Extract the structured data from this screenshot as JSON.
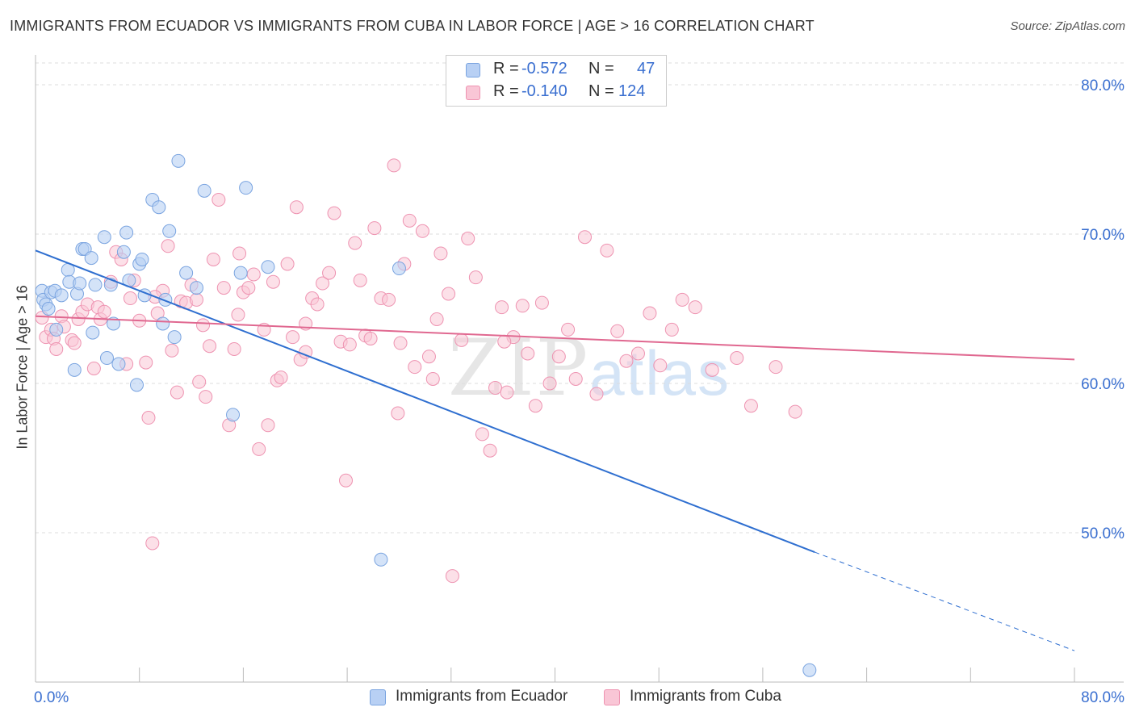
{
  "header": {
    "title": "IMMIGRANTS FROM ECUADOR VS IMMIGRANTS FROM CUBA IN LABOR FORCE | AGE > 16 CORRELATION CHART",
    "source": "Source: ZipAtlas.com"
  },
  "legend": {
    "series1": {
      "r_label": "R =",
      "r_value": "-0.572",
      "n_label": "N =",
      "n_value": "47"
    },
    "series2": {
      "r_label": "R =",
      "r_value": "-0.140",
      "n_label": "N =",
      "n_value": "124"
    }
  },
  "watermark": {
    "zip": "ZIP",
    "atlas": "atlas"
  },
  "colors": {
    "ecuador_fill": "#b8d0f4",
    "ecuador_stroke": "#7aa4e0",
    "ecuador_line": "#2f6fd0",
    "cuba_fill": "#f9c6d6",
    "cuba_stroke": "#ee93b1",
    "cuba_line": "#e06890",
    "axis_text": "#3a6fd0"
  },
  "chart_data": {
    "type": "scatter",
    "title": "IMMIGRANTS FROM ECUADOR VS IMMIGRANTS FROM CUBA IN LABOR FORCE | AGE > 16 CORRELATION CHART",
    "xlabel": "",
    "ylabel": "In Labor Force | Age > 16",
    "xlim": [
      0,
      80
    ],
    "ylim": [
      40,
      82
    ],
    "x_tick_labels": [
      "0.0%",
      "80.0%"
    ],
    "y_ticks": [
      50,
      60,
      70,
      80
    ],
    "y_tick_labels": [
      "50.0%",
      "60.0%",
      "70.0%",
      "80.0%"
    ],
    "grid": true,
    "series": [
      {
        "name": "Immigrants from Ecuador",
        "trend": {
          "x0": 0,
          "y0": 68.9,
          "x1": 60,
          "y1": 48.7,
          "dash_to_x": 80,
          "dash_to_y": 42.1
        },
        "points": [
          [
            0.5,
            66.2
          ],
          [
            0.6,
            65.6
          ],
          [
            0.8,
            65.3
          ],
          [
            1.0,
            65.0
          ],
          [
            1.2,
            66.1
          ],
          [
            1.5,
            66.2
          ],
          [
            1.6,
            63.6
          ],
          [
            2.0,
            65.9
          ],
          [
            2.5,
            67.6
          ],
          [
            2.6,
            66.8
          ],
          [
            3.0,
            60.9
          ],
          [
            3.2,
            66.0
          ],
          [
            3.4,
            66.7
          ],
          [
            3.6,
            69.0
          ],
          [
            3.8,
            69.0
          ],
          [
            4.3,
            68.4
          ],
          [
            4.4,
            63.4
          ],
          [
            4.6,
            66.6
          ],
          [
            5.3,
            69.8
          ],
          [
            5.5,
            61.7
          ],
          [
            5.8,
            66.6
          ],
          [
            6.0,
            64.0
          ],
          [
            6.4,
            61.3
          ],
          [
            6.8,
            68.8
          ],
          [
            7.0,
            70.1
          ],
          [
            7.2,
            66.9
          ],
          [
            7.8,
            59.9
          ],
          [
            8.0,
            68.0
          ],
          [
            8.2,
            68.3
          ],
          [
            8.4,
            65.9
          ],
          [
            9.0,
            72.3
          ],
          [
            9.5,
            71.8
          ],
          [
            9.8,
            64.0
          ],
          [
            10.0,
            65.6
          ],
          [
            10.3,
            70.2
          ],
          [
            10.7,
            63.1
          ],
          [
            11.0,
            74.9
          ],
          [
            11.6,
            67.4
          ],
          [
            12.4,
            66.4
          ],
          [
            13.0,
            72.9
          ],
          [
            15.2,
            57.9
          ],
          [
            15.8,
            67.4
          ],
          [
            16.2,
            73.1
          ],
          [
            17.9,
            67.8
          ],
          [
            26.6,
            48.2
          ],
          [
            28.0,
            67.7
          ],
          [
            59.6,
            40.8
          ]
        ]
      },
      {
        "name": "Immigrants from Cuba",
        "trend": {
          "x0": 0,
          "y0": 64.5,
          "x1": 80,
          "y1": 61.6
        },
        "points": [
          [
            0.5,
            64.4
          ],
          [
            0.8,
            63.1
          ],
          [
            1.2,
            63.6
          ],
          [
            1.4,
            63.0
          ],
          [
            1.6,
            62.3
          ],
          [
            2.0,
            64.5
          ],
          [
            2.2,
            63.8
          ],
          [
            2.8,
            62.9
          ],
          [
            3.0,
            62.7
          ],
          [
            3.3,
            64.3
          ],
          [
            3.6,
            64.8
          ],
          [
            4.0,
            65.3
          ],
          [
            4.5,
            61.0
          ],
          [
            4.8,
            65.1
          ],
          [
            5.0,
            64.3
          ],
          [
            5.3,
            64.8
          ],
          [
            5.8,
            66.8
          ],
          [
            6.2,
            68.8
          ],
          [
            6.6,
            68.3
          ],
          [
            7.0,
            61.3
          ],
          [
            7.3,
            65.7
          ],
          [
            7.6,
            66.9
          ],
          [
            8.0,
            64.2
          ],
          [
            8.5,
            61.4
          ],
          [
            8.7,
            57.7
          ],
          [
            9.0,
            49.3
          ],
          [
            9.4,
            64.7
          ],
          [
            9.8,
            66.2
          ],
          [
            10.2,
            69.2
          ],
          [
            10.5,
            62.2
          ],
          [
            10.9,
            59.4
          ],
          [
            11.2,
            65.5
          ],
          [
            11.6,
            65.4
          ],
          [
            12.0,
            66.6
          ],
          [
            12.4,
            65.6
          ],
          [
            12.6,
            60.1
          ],
          [
            13.1,
            59.1
          ],
          [
            13.4,
            62.5
          ],
          [
            14.1,
            72.3
          ],
          [
            14.5,
            66.4
          ],
          [
            14.9,
            57.2
          ],
          [
            15.3,
            62.3
          ],
          [
            15.7,
            68.7
          ],
          [
            16.0,
            66.1
          ],
          [
            16.4,
            66.4
          ],
          [
            16.8,
            67.3
          ],
          [
            17.2,
            55.6
          ],
          [
            17.6,
            63.6
          ],
          [
            17.9,
            57.2
          ],
          [
            18.3,
            66.8
          ],
          [
            18.6,
            60.2
          ],
          [
            18.9,
            60.4
          ],
          [
            19.4,
            68.0
          ],
          [
            19.8,
            63.1
          ],
          [
            20.1,
            71.8
          ],
          [
            20.4,
            61.6
          ],
          [
            20.8,
            62.1
          ],
          [
            21.3,
            65.7
          ],
          [
            21.7,
            65.3
          ],
          [
            22.1,
            66.7
          ],
          [
            22.6,
            67.4
          ],
          [
            23.0,
            71.4
          ],
          [
            23.5,
            62.8
          ],
          [
            23.9,
            53.5
          ],
          [
            24.2,
            62.6
          ],
          [
            24.6,
            69.4
          ],
          [
            25.0,
            66.9
          ],
          [
            25.4,
            63.2
          ],
          [
            25.8,
            63.0
          ],
          [
            26.1,
            70.4
          ],
          [
            26.6,
            65.7
          ],
          [
            27.2,
            65.6
          ],
          [
            27.6,
            74.6
          ],
          [
            28.1,
            62.7
          ],
          [
            28.4,
            68.0
          ],
          [
            28.8,
            70.9
          ],
          [
            29.2,
            61.1
          ],
          [
            29.8,
            70.2
          ],
          [
            30.3,
            61.8
          ],
          [
            30.6,
            60.3
          ],
          [
            31.2,
            68.7
          ],
          [
            31.8,
            66.0
          ],
          [
            32.1,
            47.1
          ],
          [
            32.8,
            62.9
          ],
          [
            33.3,
            69.7
          ],
          [
            33.9,
            67.1
          ],
          [
            34.4,
            56.6
          ],
          [
            35.0,
            55.5
          ],
          [
            35.4,
            59.7
          ],
          [
            35.9,
            65.1
          ],
          [
            36.3,
            59.4
          ],
          [
            36.8,
            63.1
          ],
          [
            37.5,
            65.2
          ],
          [
            37.9,
            62.0
          ],
          [
            38.5,
            58.5
          ],
          [
            39.0,
            65.4
          ],
          [
            39.6,
            60.0
          ],
          [
            40.3,
            61.8
          ],
          [
            41.0,
            63.6
          ],
          [
            41.6,
            60.3
          ],
          [
            42.3,
            69.8
          ],
          [
            43.2,
            59.3
          ],
          [
            44.0,
            68.9
          ],
          [
            44.8,
            63.5
          ],
          [
            45.5,
            61.5
          ],
          [
            46.4,
            62.0
          ],
          [
            47.3,
            64.7
          ],
          [
            48.1,
            61.2
          ],
          [
            49.0,
            63.6
          ],
          [
            49.8,
            65.6
          ],
          [
            50.8,
            65.1
          ],
          [
            52.1,
            60.9
          ],
          [
            54.0,
            61.7
          ],
          [
            55.1,
            58.5
          ],
          [
            57.0,
            61.1
          ],
          [
            58.5,
            58.1
          ],
          [
            9.2,
            65.8
          ],
          [
            13.7,
            68.3
          ],
          [
            20.8,
            64.0
          ],
          [
            27.9,
            58.0
          ],
          [
            30.9,
            64.3
          ],
          [
            36.1,
            62.8
          ],
          [
            12.9,
            63.9
          ],
          [
            15.6,
            64.6
          ]
        ]
      }
    ]
  },
  "bottom_legend": {
    "series1_label": "Immigrants from Ecuador",
    "series2_label": "Immigrants from Cuba"
  }
}
